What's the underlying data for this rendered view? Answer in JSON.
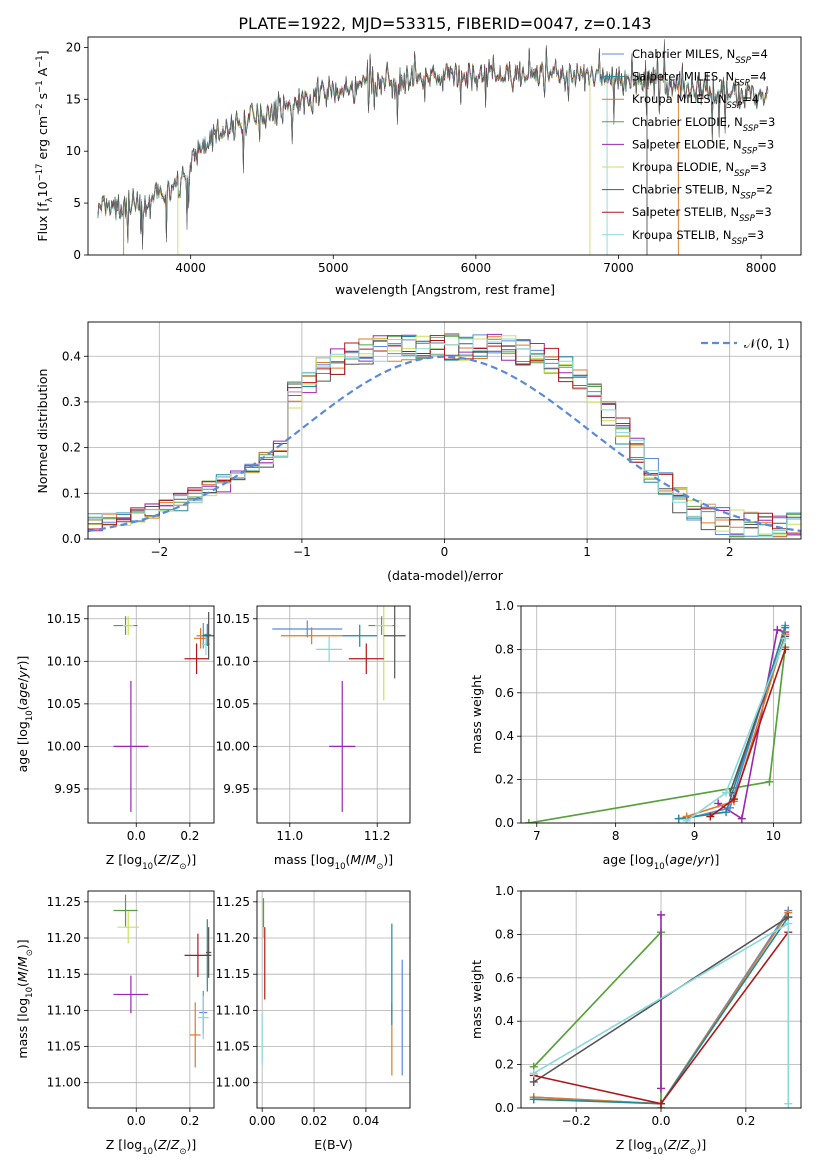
{
  "figure": {
    "title": "PLATE=1922, MJD=53315, FIBERID=0047, z=0.143"
  },
  "colors": {
    "chabrier_miles": "#5b8bd6",
    "salpeter_miles": "#1e8a9a",
    "kroupa_miles": "#e07828",
    "chabrier_elodie": "#55a040",
    "salpeter_elodie": "#9b27b0",
    "kroupa_elodie": "#c8e060",
    "chabrier_stelib": "#555555",
    "salpeter_stelib": "#b01818",
    "kroupa_stelib": "#88d8dc"
  },
  "chart_data": [
    {
      "id": "spectrum",
      "type": "line",
      "title": "PLATE=1922, MJD=53315, FIBERID=0047, z=0.143",
      "xlabel": "wavelength [Angstrom, rest frame]",
      "ylabel": "Flux [f_λ 10^-17 erg cm^-2 s^-1 A^-1]",
      "xlim": [
        3280,
        8280
      ],
      "ylim": [
        0,
        21
      ],
      "xticks": [
        4000,
        5000,
        6000,
        7000,
        8000
      ],
      "yticks": [
        0,
        5,
        10,
        15,
        20
      ],
      "grid": false,
      "legend_position": "right",
      "legend": [
        "Chabrier MILES, N_SSP=4",
        "Salpeter MILES, N_SSP=4",
        "Kroupa MILES, N_SSP=4",
        "Chabrier ELODIE, N_SSP=3",
        "Salpeter ELODIE, N_SSP=3",
        "Kroupa ELODIE, N_SSP=3",
        "Chabrier STELIB, N_SSP=2",
        "Salpeter STELIB, N_SSP=3",
        "Kroupa STELIB, N_SSP=3"
      ],
      "continuum": {
        "x": [
          3350,
          3500,
          3700,
          3900,
          4000,
          4100,
          4300,
          4500,
          4700,
          4900,
          5100,
          5300,
          5500,
          5700,
          5900,
          6100,
          6300,
          6500,
          6700,
          6900,
          7100,
          7300,
          7500,
          7700,
          7900,
          8050
        ],
        "y": [
          4.3,
          4.5,
          5.0,
          6.5,
          8.5,
          11.0,
          12.5,
          13.5,
          14.5,
          15.5,
          16.0,
          16.5,
          16.8,
          17.0,
          17.2,
          17.3,
          17.4,
          17.4,
          17.2,
          17.0,
          16.8,
          16.5,
          16.2,
          15.8,
          15.5,
          15.2
        ]
      }
    },
    {
      "id": "residuals",
      "type": "line",
      "xlabel": "(data-model)/error",
      "ylabel": "Normed distribution",
      "xlim": [
        -2.5,
        2.5
      ],
      "ylim": [
        0,
        0.475
      ],
      "xticks": [
        -2,
        -1,
        0,
        1,
        2
      ],
      "yticks": [
        0.0,
        0.1,
        0.2,
        0.3,
        0.4
      ],
      "grid": true,
      "legend_position": "top-right",
      "legend": [
        "𝒩(0, 1)"
      ],
      "gaussian": {
        "mean": 0,
        "sigma": 1
      }
    },
    {
      "id": "age_vs_Z",
      "type": "scatter",
      "xlabel": "Z [log10(Z/Z⊙)]",
      "ylabel": "age  [log10(age/yr)]",
      "xlim": [
        -0.18,
        0.29
      ],
      "ylim": [
        9.91,
        10.165
      ],
      "xticks": [
        0.0,
        0.2
      ],
      "yticks": [
        9.95,
        10.0,
        10.05,
        10.1,
        10.15
      ],
      "grid": true,
      "points": [
        {
          "x": -0.04,
          "y": 10.142,
          "xerr": 0.045,
          "yerr": 0.011,
          "c": "chabrier_elodie"
        },
        {
          "x": -0.03,
          "y": 10.142,
          "xerr": 0.02,
          "yerr": 0.011,
          "c": "kroupa_elodie"
        },
        {
          "x": -0.02,
          "y": 10.0,
          "xerr": 0.065,
          "yerr": 0.077,
          "c": "salpeter_elodie"
        },
        {
          "x": 0.25,
          "y": 10.13,
          "xerr": 0.025,
          "yerr": 0.015,
          "c": "chabrier_miles"
        },
        {
          "x": 0.24,
          "y": 10.127,
          "xerr": 0.025,
          "yerr": 0.012,
          "c": "kroupa_miles"
        },
        {
          "x": 0.26,
          "y": 10.12,
          "xerr": 0.015,
          "yerr": 0.013,
          "c": "kroupa_stelib"
        },
        {
          "x": 0.265,
          "y": 10.131,
          "xerr": 0.015,
          "yerr": 0.013,
          "c": "salpeter_miles"
        },
        {
          "x": 0.225,
          "y": 10.103,
          "xerr": 0.045,
          "yerr": 0.018,
          "c": "salpeter_stelib"
        },
        {
          "x": 0.27,
          "y": 10.13,
          "xerr": 0.02,
          "yerr": 0.028,
          "c": "chabrier_stelib"
        }
      ]
    },
    {
      "id": "age_vs_mass",
      "type": "scatter",
      "xlabel": "mass [log10(M/M⊙)]",
      "ylabel": "",
      "xlim": [
        10.925,
        11.275
      ],
      "ylim": [
        9.91,
        10.165
      ],
      "xticks": [
        11.0,
        11.2
      ],
      "yticks": [
        9.95,
        10.0,
        10.05,
        10.1,
        10.15
      ],
      "grid": true,
      "points": [
        {
          "x": 11.21,
          "y": 10.142,
          "xerr": 0.03,
          "yerr": 0.011,
          "c": "chabrier_elodie"
        },
        {
          "x": 11.215,
          "y": 10.142,
          "xerr": 0.02,
          "yerr": 0.088,
          "c": "kroupa_elodie"
        },
        {
          "x": 11.12,
          "y": 10.0,
          "xerr": 0.03,
          "yerr": 0.077,
          "c": "salpeter_elodie"
        },
        {
          "x": 11.04,
          "y": 10.138,
          "xerr": 0.08,
          "yerr": 0.01,
          "c": "chabrier_miles"
        },
        {
          "x": 11.05,
          "y": 10.13,
          "xerr": 0.07,
          "yerr": 0.01,
          "c": "kroupa_miles"
        },
        {
          "x": 11.09,
          "y": 10.114,
          "xerr": 0.03,
          "yerr": 0.015,
          "c": "kroupa_stelib"
        },
        {
          "x": 11.16,
          "y": 10.13,
          "xerr": 0.04,
          "yerr": 0.013,
          "c": "salpeter_miles"
        },
        {
          "x": 11.175,
          "y": 10.103,
          "xerr": 0.04,
          "yerr": 0.018,
          "c": "salpeter_stelib"
        },
        {
          "x": 11.24,
          "y": 10.13,
          "xerr": 0.025,
          "yerr": 0.05,
          "c": "chabrier_stelib"
        }
      ]
    },
    {
      "id": "mass_weight_vs_age",
      "type": "line",
      "xlabel": "age  [log10(age/yr)]",
      "ylabel": "mass weight",
      "xlim": [
        6.8,
        10.35
      ],
      "ylim": [
        0,
        1.0
      ],
      "xticks": [
        7,
        8,
        9,
        10
      ],
      "yticks": [
        0.0,
        0.2,
        0.4,
        0.6,
        0.8,
        1.0
      ],
      "grid": true,
      "series": [
        {
          "c": "kroupa_elodie",
          "x": [
            6.9,
            9.95,
            10.15
          ],
          "y": [
            0.0,
            0.19,
            0.81
          ]
        },
        {
          "c": "chabrier_elodie",
          "x": [
            6.9,
            9.95,
            10.15
          ],
          "y": [
            0.0,
            0.19,
            0.81
          ]
        },
        {
          "c": "salpeter_elodie",
          "x": [
            9.3,
            9.6,
            10.05,
            10.15
          ],
          "y": [
            0.09,
            0.02,
            0.89,
            0.88
          ]
        },
        {
          "c": "chabrier_miles",
          "x": [
            8.9,
            9.45,
            10.15
          ],
          "y": [
            0.02,
            0.07,
            0.91
          ]
        },
        {
          "c": "salpeter_miles",
          "x": [
            8.8,
            9.4,
            10.15
          ],
          "y": [
            0.02,
            0.05,
            0.9
          ]
        },
        {
          "c": "kroupa_miles",
          "x": [
            8.9,
            9.5,
            10.15
          ],
          "y": [
            0.03,
            0.1,
            0.87
          ]
        },
        {
          "c": "chabrier_stelib",
          "x": [
            9.45,
            10.15
          ],
          "y": [
            0.14,
            0.86
          ]
        },
        {
          "c": "salpeter_stelib",
          "x": [
            9.2,
            9.5,
            10.15
          ],
          "y": [
            0.03,
            0.11,
            0.8
          ]
        },
        {
          "c": "kroupa_stelib",
          "x": [
            8.9,
            9.4,
            10.15
          ],
          "y": [
            0.01,
            0.14,
            0.85
          ]
        }
      ]
    },
    {
      "id": "mass_vs_Z",
      "type": "scatter",
      "xlabel": "Z [log10(Z/Z⊙)]",
      "ylabel": "mass [log10(M/M⊙)]",
      "xlim": [
        -0.18,
        0.29
      ],
      "ylim": [
        10.965,
        11.265
      ],
      "xticks": [
        0.0,
        0.2
      ],
      "yticks": [
        11.0,
        11.05,
        11.1,
        11.15,
        11.2,
        11.25
      ],
      "grid": true,
      "points": [
        {
          "x": -0.04,
          "y": 11.238,
          "xerr": 0.045,
          "yerr": 0.022,
          "c": "chabrier_elodie"
        },
        {
          "x": -0.03,
          "y": 11.215,
          "xerr": 0.04,
          "yerr": 0.022,
          "c": "kroupa_elodie"
        },
        {
          "x": -0.02,
          "y": 11.122,
          "xerr": 0.065,
          "yerr": 0.026,
          "c": "salpeter_elodie"
        },
        {
          "x": 0.25,
          "y": 11.097,
          "xerr": 0.015,
          "yerr": 0.03,
          "c": "chabrier_miles"
        },
        {
          "x": 0.22,
          "y": 11.066,
          "xerr": 0.02,
          "yerr": 0.045,
          "c": "kroupa_miles"
        },
        {
          "x": 0.25,
          "y": 11.09,
          "xerr": 0.02,
          "yerr": 0.03,
          "c": "kroupa_stelib"
        },
        {
          "x": 0.265,
          "y": 11.176,
          "xerr": 0.01,
          "yerr": 0.05,
          "c": "salpeter_miles"
        },
        {
          "x": 0.23,
          "y": 11.176,
          "xerr": 0.05,
          "yerr": 0.03,
          "c": "salpeter_stelib"
        },
        {
          "x": 0.27,
          "y": 11.18,
          "xerr": 0.01,
          "yerr": 0.035,
          "c": "chabrier_stelib"
        }
      ]
    },
    {
      "id": "mass_vs_EBV",
      "type": "scatter",
      "xlabel": "E(B-V)",
      "ylabel": "",
      "xlim": [
        -0.002,
        0.057
      ],
      "ylim": [
        10.965,
        11.265
      ],
      "xticks": [
        0.0,
        0.02,
        0.04
      ],
      "yticks": [
        11.0,
        11.05,
        11.1,
        11.15,
        11.2,
        11.25
      ],
      "grid": true,
      "points": [
        {
          "x": 0.0005,
          "y": 11.225,
          "xerr": 0,
          "yerr": 0.025,
          "c": "kroupa_elodie"
        },
        {
          "x": 0.0005,
          "y": 11.235,
          "xerr": 0,
          "yerr": 0.02,
          "c": "chabrier_elodie"
        },
        {
          "x": 0.001,
          "y": 11.165,
          "xerr": 0,
          "yerr": 0.05,
          "c": "salpeter_stelib"
        },
        {
          "x": 0.0,
          "y": 11.06,
          "xerr": 0,
          "yerr": 0.035,
          "c": "kroupa_stelib"
        },
        {
          "x": 0.05,
          "y": 11.06,
          "xerr": 0,
          "yerr": 0.05,
          "c": "kroupa_miles"
        },
        {
          "x": 0.05,
          "y": 11.15,
          "xerr": 0,
          "yerr": 0.07,
          "c": "salpeter_miles"
        },
        {
          "x": 0.054,
          "y": 11.09,
          "xerr": 0,
          "yerr": 0.08,
          "c": "chabrier_miles"
        }
      ]
    },
    {
      "id": "mass_weight_vs_Z",
      "type": "line",
      "xlabel": "Z [log10(Z/Z⊙)]",
      "ylabel": "mass weight",
      "xlim": [
        -0.33,
        0.33
      ],
      "ylim": [
        0,
        1.0
      ],
      "xticks": [
        -0.2,
        0.0,
        0.2
      ],
      "yticks": [
        0.0,
        0.2,
        0.4,
        0.6,
        0.8,
        1.0
      ],
      "grid": true,
      "series": [
        {
          "c": "chabrier_miles",
          "x": [
            -0.3,
            0.0,
            0.3
          ],
          "y": [
            0.05,
            0.02,
            0.91
          ]
        },
        {
          "c": "kroupa_miles",
          "x": [
            -0.3,
            0.0,
            0.3
          ],
          "y": [
            0.05,
            0.02,
            0.9
          ]
        },
        {
          "c": "salpeter_miles",
          "x": [
            -0.3,
            0.0,
            0.3
          ],
          "y": [
            0.04,
            0.02,
            0.88
          ]
        },
        {
          "c": "kroupa_elodie",
          "x": [
            -0.3,
            0.0,
            0.0
          ],
          "y": [
            0.19,
            0.81,
            0.0
          ]
        },
        {
          "c": "chabrier_elodie",
          "x": [
            -0.3,
            0.0,
            0.0
          ],
          "y": [
            0.19,
            0.81,
            0.0
          ]
        },
        {
          "c": "salpeter_elodie",
          "x": [
            0.0,
            0.0
          ],
          "y": [
            0.09,
            0.89
          ]
        },
        {
          "c": "chabrier_stelib",
          "x": [
            -0.3,
            0.3
          ],
          "y": [
            0.12,
            0.88
          ]
        },
        {
          "c": "salpeter_stelib",
          "x": [
            -0.3,
            0.0,
            0.3
          ],
          "y": [
            0.15,
            0.02,
            0.81
          ]
        },
        {
          "c": "kroupa_stelib",
          "x": [
            -0.3,
            0.3,
            0.3
          ],
          "y": [
            0.16,
            0.85,
            0.02
          ]
        }
      ]
    }
  ]
}
